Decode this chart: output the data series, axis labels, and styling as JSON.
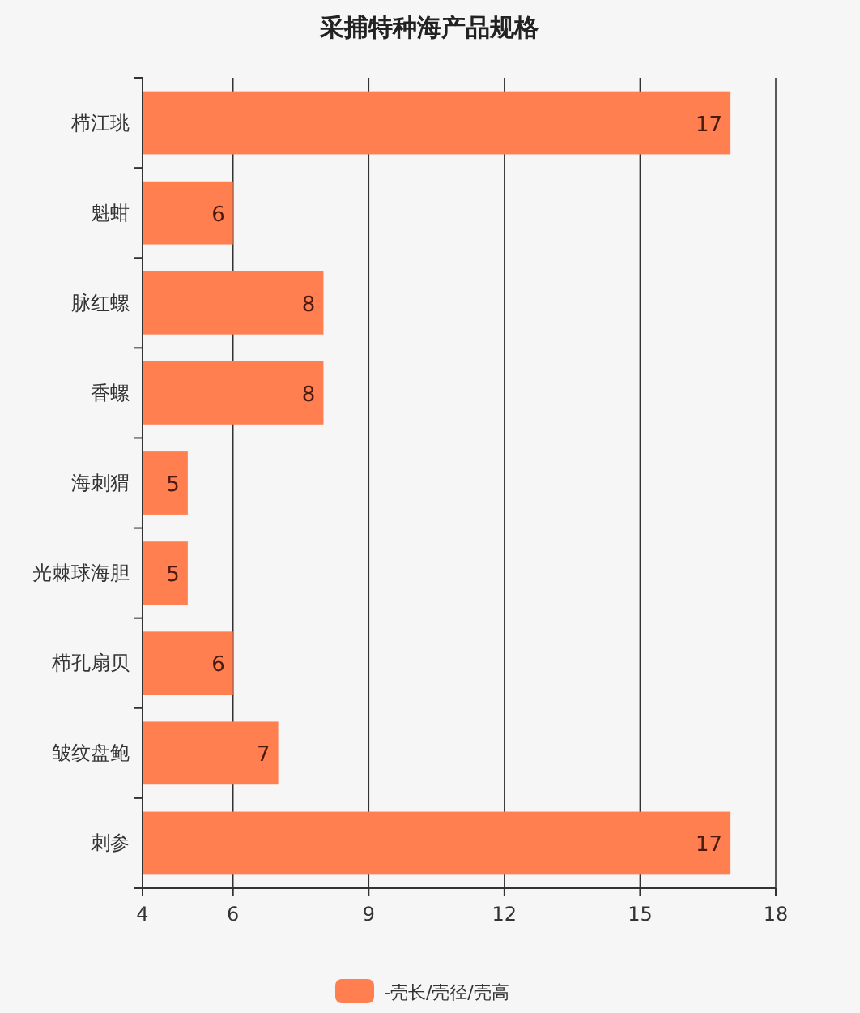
{
  "chart_data": {
    "type": "bar",
    "orientation": "horizontal",
    "title": "采捕特种海产品规格",
    "categories": [
      "栉江珧",
      "魁蚶",
      "脉红螺",
      "香螺",
      "海刺猬",
      "光棘球海胆",
      "栉孔扇贝",
      "皱纹盘鲍",
      "刺参"
    ],
    "series": [
      {
        "name": "-壳长/壳径/壳高",
        "color": "#ff7f50",
        "values": [
          17,
          6,
          8,
          8,
          5,
          5,
          6,
          7,
          17
        ]
      }
    ],
    "xlim": [
      4,
      18
    ],
    "xticks": [
      4,
      6,
      9,
      12,
      15,
      18
    ],
    "grid": "x",
    "legend": "bottom",
    "data_labels": true
  }
}
